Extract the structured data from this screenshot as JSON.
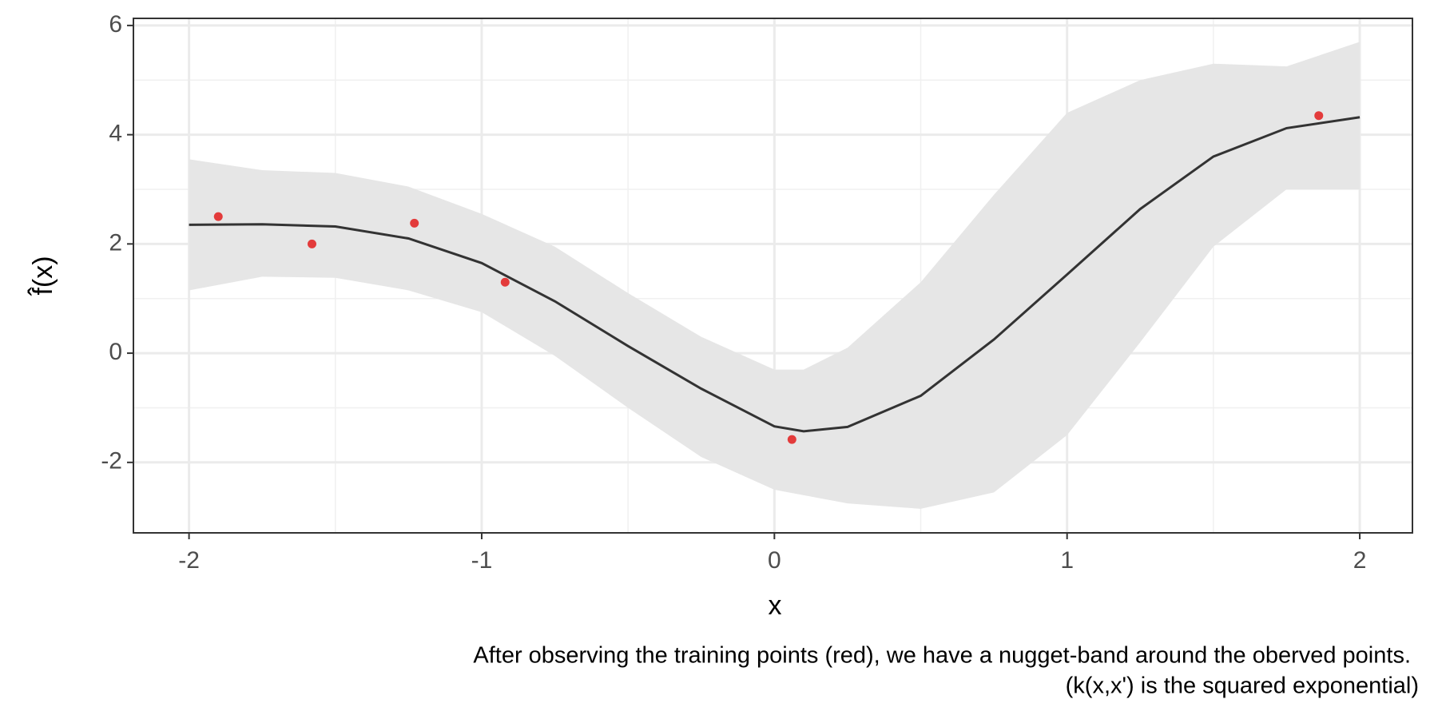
{
  "chart_data": {
    "type": "line",
    "xlabel": "x",
    "ylabel": "f̂(x)",
    "caption": [
      "After observing the training points (red), we have a nugget-band around the oberved points.",
      "(k(x,x') is the squared exponential)"
    ],
    "x": [
      -2,
      -1.75,
      -1.5,
      -1.25,
      -1,
      -0.75,
      -0.5,
      -0.25,
      0,
      0.1,
      0.25,
      0.5,
      0.75,
      1,
      1.25,
      1.5,
      1.75,
      2
    ],
    "mean": [
      2.35,
      2.36,
      2.32,
      2.1,
      1.65,
      0.95,
      0.13,
      -0.65,
      -1.34,
      -1.43,
      -1.35,
      -0.78,
      0.25,
      1.44,
      2.64,
      3.6,
      4.12,
      4.32
    ],
    "upper": [
      3.55,
      3.35,
      3.3,
      3.05,
      2.55,
      1.95,
      1.1,
      0.3,
      -0.3,
      -0.3,
      0.1,
      1.3,
      2.9,
      4.4,
      5.0,
      5.3,
      5.25,
      5.7
    ],
    "lower": [
      1.15,
      1.4,
      1.38,
      1.15,
      0.75,
      -0.05,
      -1.0,
      -1.9,
      -2.5,
      -2.6,
      -2.75,
      -2.85,
      -2.55,
      -1.5,
      0.2,
      1.95,
      3.0,
      3.0
    ],
    "line_color": "#333333",
    "band_color": "#e6e6e6",
    "points": {
      "x": [
        -1.9,
        -1.58,
        -1.23,
        -0.92,
        0.06,
        1.86
      ],
      "y": [
        2.5,
        2.0,
        2.38,
        1.3,
        -1.58,
        4.35
      ],
      "color": "#e33b3b"
    },
    "xlim": [
      -2.19,
      2.18
    ],
    "ylim": [
      -3.29,
      6.13
    ],
    "xticks": [
      -2,
      -1,
      0,
      1,
      2
    ],
    "yticks": [
      -2,
      0,
      2,
      4,
      6
    ],
    "grid": true
  }
}
